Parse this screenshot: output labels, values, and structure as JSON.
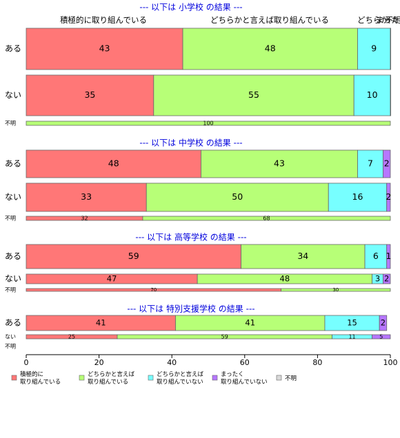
{
  "chart_data": {
    "type": "bar",
    "orientation": "horizontal",
    "stacked": true,
    "xlim": [
      0,
      100
    ],
    "x_ticks": [
      "0",
      "20",
      "40",
      "60",
      "80",
      "100"
    ],
    "top_labels": [
      "積極的に取り組んでいる",
      "どちらかと言えば取り組んでいる",
      "どちらか",
      "まった",
      "不明"
    ],
    "legend": {
      "position": "bottom",
      "entries": [
        {
          "label": "積極的に\n取り組んでいる",
          "color": "#ff7777"
        },
        {
          "label": "どちらかと言えば\n取り組んでいる",
          "color": "#b7ff77"
        },
        {
          "label": "どちらかと言えば\n取り組んでいない",
          "color": "#77ffff"
        },
        {
          "label": "まったく\n取り組んでいない",
          "color": "#b677ff"
        },
        {
          "label": "不明",
          "color": "#d9d9d9"
        }
      ]
    },
    "panels": [
      {
        "title": "--- 以下は 小学校 の結果 ---",
        "rows": [
          {
            "label": "ある",
            "segments": [
              {
                "value": 43,
                "label": "43"
              },
              {
                "value": 48,
                "label": "48"
              },
              {
                "value": 9,
                "label": "9"
              },
              {
                "value": 0.4,
                "label": ""
              },
              {
                "value": 0,
                "label": ""
              }
            ]
          },
          {
            "label": "ない",
            "segments": [
              {
                "value": 35,
                "label": "35"
              },
              {
                "value": 55,
                "label": "55"
              },
              {
                "value": 10,
                "label": "10"
              },
              {
                "value": 0.3,
                "label": ""
              },
              {
                "value": 0,
                "label": ""
              }
            ]
          },
          {
            "label": "不明",
            "segments": [
              {
                "value": 0,
                "label": ""
              },
              {
                "value": 100,
                "label": "100"
              },
              {
                "value": 0,
                "label": ""
              },
              {
                "value": 0,
                "label": ""
              },
              {
                "value": 0,
                "label": ""
              }
            ]
          }
        ]
      },
      {
        "title": "--- 以下は 中学校 の結果 ---",
        "rows": [
          {
            "label": "ある",
            "segments": [
              {
                "value": 48,
                "label": "48"
              },
              {
                "value": 43,
                "label": "43"
              },
              {
                "value": 7,
                "label": "7"
              },
              {
                "value": 2,
                "label": "2"
              },
              {
                "value": 0,
                "label": ""
              }
            ]
          },
          {
            "label": "ない",
            "segments": [
              {
                "value": 33,
                "label": "33"
              },
              {
                "value": 50,
                "label": "50"
              },
              {
                "value": 16,
                "label": "16"
              },
              {
                "value": 2,
                "label": "2"
              },
              {
                "value": 0,
                "label": ""
              }
            ]
          },
          {
            "label": "不明",
            "segments": [
              {
                "value": 32,
                "label": "32"
              },
              {
                "value": 68,
                "label": "68"
              },
              {
                "value": 0,
                "label": ""
              },
              {
                "value": 0,
                "label": ""
              },
              {
                "value": 0,
                "label": ""
              }
            ]
          }
        ]
      },
      {
        "title": "--- 以下は 高等学校 の結果 ---",
        "rows": [
          {
            "label": "ある",
            "segments": [
              {
                "value": 59,
                "label": "59"
              },
              {
                "value": 34,
                "label": "34"
              },
              {
                "value": 6,
                "label": "6"
              },
              {
                "value": 1,
                "label": "1"
              },
              {
                "value": 0,
                "label": ""
              }
            ]
          },
          {
            "label": "ない",
            "segments": [
              {
                "value": 47,
                "label": "47"
              },
              {
                "value": 48,
                "label": "48"
              },
              {
                "value": 3,
                "label": "3"
              },
              {
                "value": 2,
                "label": "2"
              },
              {
                "value": 0,
                "label": ""
              }
            ]
          },
          {
            "label": "不明",
            "segments": [
              {
                "value": 70,
                "label": "70"
              },
              {
                "value": 30,
                "label": "30"
              },
              {
                "value": 0,
                "label": ""
              },
              {
                "value": 0,
                "label": ""
              },
              {
                "value": 0,
                "label": ""
              }
            ]
          }
        ]
      },
      {
        "title": "--- 以下は 特別支援学校 の結果 ---",
        "rows": [
          {
            "label": "ある",
            "segments": [
              {
                "value": 41,
                "label": "41"
              },
              {
                "value": 41,
                "label": "41"
              },
              {
                "value": 15,
                "label": "15"
              },
              {
                "value": 2,
                "label": "2"
              },
              {
                "value": 0,
                "label": ""
              }
            ]
          },
          {
            "label": "ない",
            "segments": [
              {
                "value": 25,
                "label": "25"
              },
              {
                "value": 59,
                "label": "59"
              },
              {
                "value": 11,
                "label": "11"
              },
              {
                "value": 5,
                "label": "5"
              },
              {
                "value": 0,
                "label": ""
              }
            ]
          },
          {
            "label": "不明",
            "segments": []
          }
        ]
      }
    ]
  }
}
